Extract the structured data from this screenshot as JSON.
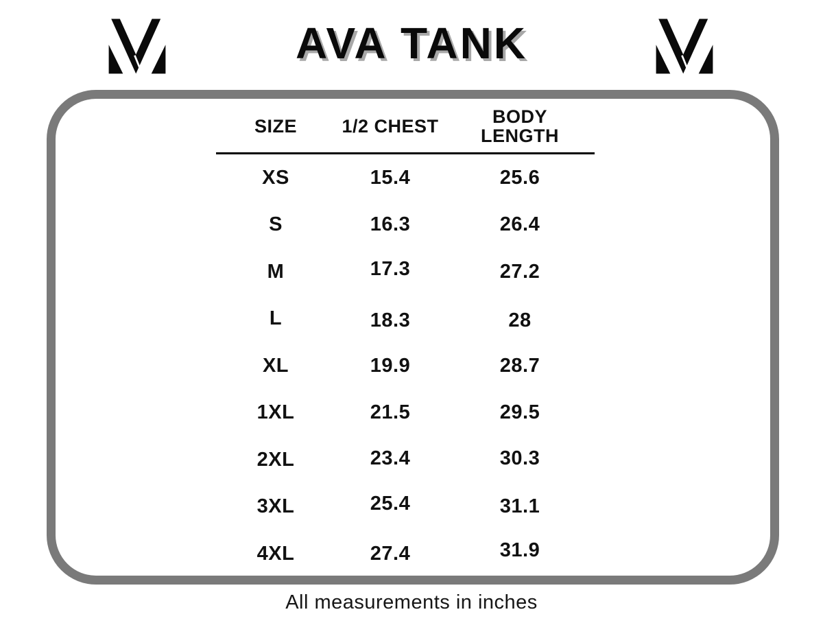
{
  "header": {
    "title": "AVA TANK"
  },
  "table": {
    "columns": [
      "SIZE",
      "1/2 CHEST",
      "BODY LENGTH"
    ]
  },
  "chart_data": {
    "type": "table",
    "title": "AVA TANK",
    "columns": [
      "SIZE",
      "1/2 CHEST",
      "BODY LENGTH"
    ],
    "rows": [
      [
        "XS",
        "15.4",
        "25.6"
      ],
      [
        "S",
        "16.3",
        "26.4"
      ],
      [
        "M",
        "17.3",
        "27.2"
      ],
      [
        "L",
        "18.3",
        "28"
      ],
      [
        "XL",
        "19.9",
        "28.7"
      ],
      [
        "1XL",
        "21.5",
        "29.5"
      ],
      [
        "2XL",
        "23.4",
        "30.3"
      ],
      [
        "3XL",
        "25.4",
        "31.1"
      ],
      [
        "4XL",
        "27.4",
        "31.9"
      ]
    ],
    "units": "inches",
    "note": "All measurements in inches",
    "layout_hints": {
      "header_divider": true,
      "gridlines": false,
      "frame": "gray rounded rectangle"
    }
  },
  "footer": {
    "note": "All measurements in inches"
  },
  "icons": {
    "brand_left": "mv-monogram-icon",
    "brand_right": "mv-monogram-icon"
  },
  "colors": {
    "border": "#7a7a7a",
    "text": "#111111",
    "title_shadow": "#a8a8a8",
    "bg": "#ffffff"
  }
}
